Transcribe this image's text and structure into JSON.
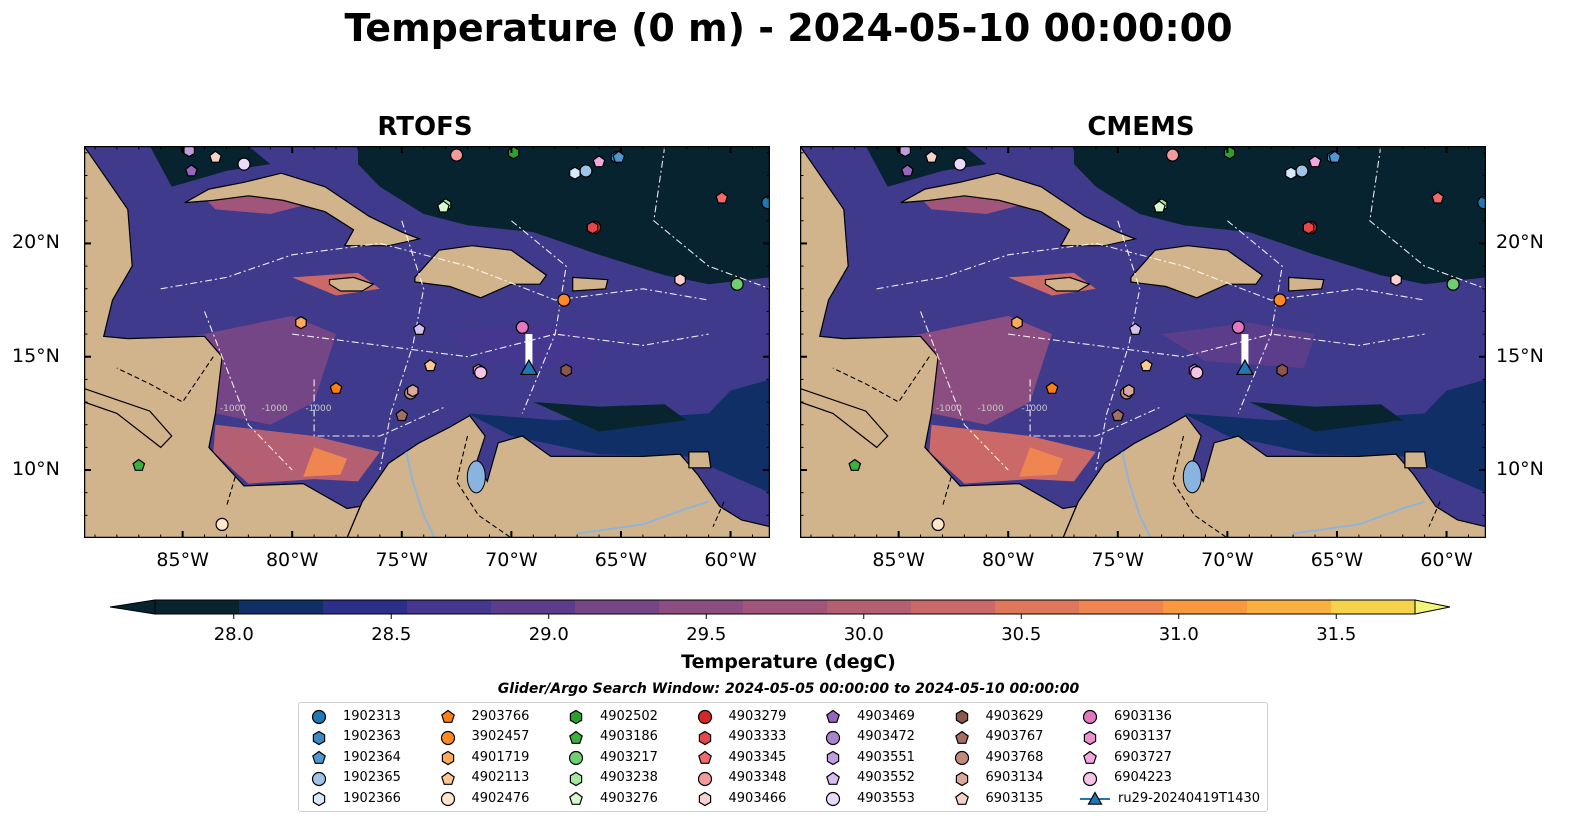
{
  "title": "Temperature (0 m) - 2024-05-10 00:00:00",
  "panels": [
    {
      "title": "RTOFS"
    },
    {
      "title": "CMEMS"
    }
  ],
  "map_extent": {
    "lon_min": -89.5,
    "lon_max": -58.2,
    "lat_min": 7.0,
    "lat_max": 24.3
  },
  "lon_ticks": [
    {
      "value": -85,
      "label": "85°W"
    },
    {
      "value": -80,
      "label": "80°W"
    },
    {
      "value": -75,
      "label": "75°W"
    },
    {
      "value": -70,
      "label": "70°W"
    },
    {
      "value": -65,
      "label": "65°W"
    },
    {
      "value": -60,
      "label": "60°W"
    }
  ],
  "lat_ticks": [
    {
      "value": 20,
      "label": "20°N"
    },
    {
      "value": 15,
      "label": "15°N"
    },
    {
      "value": 10,
      "label": "10°N"
    }
  ],
  "colors": {
    "land": "#d2b48c",
    "ocean_cold": "#07232f",
    "lake": "#8ab4e0"
  },
  "colorbar": {
    "label": "Temperature (degC)",
    "min": 27.75,
    "max": 31.75,
    "extend": "both",
    "ticks": [
      {
        "value": 28.0,
        "label": "28.0"
      },
      {
        "value": 28.5,
        "label": "28.5"
      },
      {
        "value": 29.0,
        "label": "29.0"
      },
      {
        "value": 29.5,
        "label": "29.5"
      },
      {
        "value": 30.0,
        "label": "30.0"
      },
      {
        "value": 30.5,
        "label": "30.5"
      },
      {
        "value": 31.0,
        "label": "31.0"
      },
      {
        "value": 31.5,
        "label": "31.5"
      }
    ],
    "colors": [
      "#08252f",
      "#0f2f66",
      "#2c2f8a",
      "#45368f",
      "#5c3d8c",
      "#754686",
      "#8c4e80",
      "#a1557a",
      "#b55f72",
      "#ca6968",
      "#de775c",
      "#ef8550",
      "#f8983f",
      "#fbb042",
      "#f6d34d"
    ],
    "min_color": "#07232f",
    "max_color": "#f3f47a"
  },
  "legend": {
    "title": "Glider/Argo Search Window: 2024-05-05 00:00:00 to 2024-05-10 00:00:00",
    "columns": [
      [
        {
          "label": "1902313",
          "marker": "circle",
          "color": "#1f77b4"
        },
        {
          "label": "1902363",
          "marker": "hexagon",
          "color": "#3a8ac4"
        },
        {
          "label": "1902364",
          "marker": "pentagon",
          "color": "#4f97d0"
        },
        {
          "label": "1902365",
          "marker": "circle",
          "color": "#9ec4ea"
        },
        {
          "label": "1902366",
          "marker": "hexagon",
          "color": "#d8eafa"
        }
      ],
      [
        {
          "label": "2903766",
          "marker": "pentagon",
          "color": "#ff7f0e"
        },
        {
          "label": "3902457",
          "marker": "circle",
          "color": "#ff8a24"
        },
        {
          "label": "4901719",
          "marker": "hexagon",
          "color": "#ffa95a"
        },
        {
          "label": "4902113",
          "marker": "pentagon",
          "color": "#ffc792"
        },
        {
          "label": "4902476",
          "marker": "circle",
          "color": "#ffe6cc"
        }
      ],
      [
        {
          "label": "4902502",
          "marker": "hexagon",
          "color": "#2ca02c"
        },
        {
          "label": "4903186",
          "marker": "pentagon",
          "color": "#3daf3d"
        },
        {
          "label": "4903217",
          "marker": "circle",
          "color": "#6fcf6f"
        },
        {
          "label": "4903238",
          "marker": "hexagon",
          "color": "#a6e6a0"
        },
        {
          "label": "4903276",
          "marker": "pentagon",
          "color": "#d6f8cf"
        }
      ],
      [
        {
          "label": "4903279",
          "marker": "circle",
          "color": "#d62728"
        },
        {
          "label": "4903333",
          "marker": "hexagon",
          "color": "#e4464a"
        },
        {
          "label": "4903345",
          "marker": "pentagon",
          "color": "#ef6a6a"
        },
        {
          "label": "4903348",
          "marker": "circle",
          "color": "#f39a9a"
        },
        {
          "label": "4903466",
          "marker": "hexagon",
          "color": "#fbd0d0"
        }
      ],
      [
        {
          "label": "4903469",
          "marker": "pentagon",
          "color": "#9467bd"
        },
        {
          "label": "4903472",
          "marker": "circle",
          "color": "#a884cc"
        },
        {
          "label": "4903551",
          "marker": "hexagon",
          "color": "#bd9fe0"
        },
        {
          "label": "4903552",
          "marker": "pentagon",
          "color": "#d4bff0"
        },
        {
          "label": "4903553",
          "marker": "circle",
          "color": "#ead9fa"
        }
      ],
      [
        {
          "label": "4903629",
          "marker": "hexagon",
          "color": "#8c564b"
        },
        {
          "label": "4903767",
          "marker": "pentagon",
          "color": "#a56e62"
        },
        {
          "label": "4903768",
          "marker": "circle",
          "color": "#c08a7d"
        },
        {
          "label": "6903134",
          "marker": "hexagon",
          "color": "#dba89c"
        },
        {
          "label": "6903135",
          "marker": "pentagon",
          "color": "#f5d3c8"
        }
      ],
      [
        {
          "label": "6903136",
          "marker": "circle",
          "color": "#e377c2"
        },
        {
          "label": "6903137",
          "marker": "hexagon",
          "color": "#ea8fcf"
        },
        {
          "label": "6903727",
          "marker": "pentagon",
          "color": "#f2a8dc"
        },
        {
          "label": "6904223",
          "marker": "circle",
          "color": "#f8c4e6"
        },
        {
          "label": "ru29-20240419T1430",
          "marker": "glider",
          "color": "#1f77b4"
        }
      ]
    ]
  },
  "markers": [
    {
      "id": "1902313",
      "lon": -58.3,
      "lat": 21.8
    },
    {
      "id": "1902363",
      "lon": -65.2,
      "lat": 23.8
    },
    {
      "id": "1902364",
      "lon": -65.1,
      "lat": 23.8
    },
    {
      "id": "1902365",
      "lon": -66.6,
      "lat": 23.2
    },
    {
      "id": "1902366",
      "lon": -67.1,
      "lat": 23.1
    },
    {
      "id": "2903766",
      "lon": -78.0,
      "lat": 13.6
    },
    {
      "id": "3902457",
      "lon": -67.6,
      "lat": 17.5
    },
    {
      "id": "4901719",
      "lon": -79.6,
      "lat": 16.5
    },
    {
      "id": "4902113",
      "lon": -73.7,
      "lat": 14.6
    },
    {
      "id": "4902476",
      "lon": -83.2,
      "lat": 7.6
    },
    {
      "id": "4902502",
      "lon": -69.9,
      "lat": 24.0
    },
    {
      "id": "4903186",
      "lon": -87.0,
      "lat": 10.2
    },
    {
      "id": "4903217",
      "lon": -59.7,
      "lat": 18.2
    },
    {
      "id": "4903238",
      "lon": -73.0,
      "lat": 21.7
    },
    {
      "id": "4903276",
      "lon": -73.1,
      "lat": 21.6
    },
    {
      "id": "4903279",
      "lon": -66.2,
      "lat": 20.7
    },
    {
      "id": "4903333",
      "lon": -66.3,
      "lat": 20.7
    },
    {
      "id": "4903345",
      "lon": -60.4,
      "lat": 22.0
    },
    {
      "id": "4903348",
      "lon": -72.5,
      "lat": 23.9
    },
    {
      "id": "4903466",
      "lon": -62.3,
      "lat": 18.4
    },
    {
      "id": "4903469",
      "lon": -84.6,
      "lat": 23.2
    },
    {
      "id": "4903472",
      "lon": -84.8,
      "lat": 24.2
    },
    {
      "id": "4903551",
      "lon": -84.7,
      "lat": 24.1
    },
    {
      "id": "4903552",
      "lon": -74.2,
      "lat": 16.2
    },
    {
      "id": "4903553",
      "lon": -82.2,
      "lat": 23.5
    },
    {
      "id": "4903629",
      "lon": -67.5,
      "lat": 14.4
    },
    {
      "id": "4903767",
      "lon": -75.0,
      "lat": 12.4
    },
    {
      "id": "4903768",
      "lon": -74.6,
      "lat": 13.4
    },
    {
      "id": "6903134",
      "lon": -74.5,
      "lat": 13.5
    },
    {
      "id": "6903135",
      "lon": -83.5,
      "lat": 23.8
    },
    {
      "id": "6903136",
      "lon": -69.5,
      "lat": 16.3
    },
    {
      "id": "6903137",
      "lon": -71.5,
      "lat": 14.4
    },
    {
      "id": "6903727",
      "lon": -66.0,
      "lat": 23.6
    },
    {
      "id": "6904223",
      "lon": -71.4,
      "lat": 14.3
    }
  ],
  "glider": {
    "id": "ru29-20240419T1430",
    "lon": -69.2,
    "lat": 14.5,
    "track_end_lat": 16.0
  }
}
